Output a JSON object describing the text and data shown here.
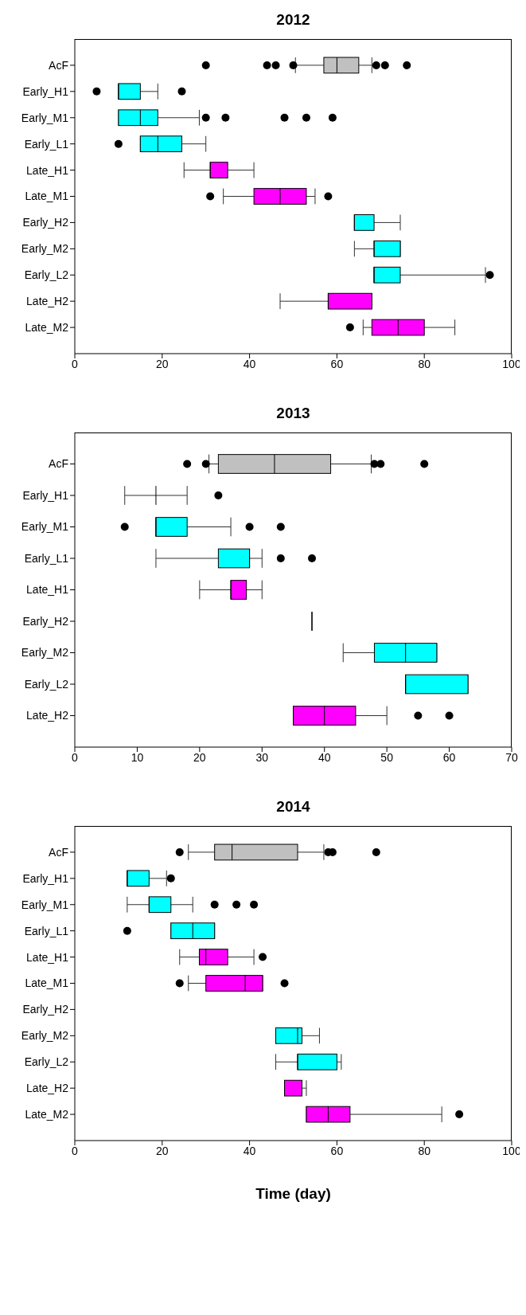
{
  "chart_data": [
    {
      "type": "box",
      "title": "2012",
      "orientation": "horizontal",
      "categories": [
        "AcF",
        "Early_H1",
        "Early_M1",
        "Early_L1",
        "Late_H1",
        "Late_M1",
        "Early_H2",
        "Early_M2",
        "Early_L2",
        "Late_H2",
        "Late_M2"
      ],
      "colors": [
        "#c0c0c0",
        "#00ffff",
        "#00ffff",
        "#00ffff",
        "#ff00ff",
        "#ff00ff",
        "#00ffff",
        "#00ffff",
        "#00ffff",
        "#ff00ff",
        "#ff00ff"
      ],
      "boxes": [
        {
          "low": 50.5,
          "q1": 57,
          "median": 60,
          "q3": 65,
          "high": 68,
          "outliers": [
            30,
            44,
            46,
            50,
            69,
            71,
            76
          ]
        },
        {
          "low": 10,
          "q1": 10,
          "median": 10,
          "q3": 15,
          "high": 19,
          "outliers": [
            5,
            24.5
          ]
        },
        {
          "low": 10,
          "q1": 10,
          "median": 15,
          "q3": 19,
          "high": 28.5,
          "outliers": [
            30,
            34.5,
            48,
            53,
            59
          ]
        },
        {
          "low": 15,
          "q1": 15,
          "median": 19,
          "q3": 24.5,
          "high": 30,
          "outliers": [
            10
          ]
        },
        {
          "low": 25,
          "q1": 31,
          "median": 31,
          "q3": 35,
          "high": 41
        },
        {
          "low": 34,
          "q1": 41,
          "median": 47,
          "q3": 53,
          "high": 55,
          "outliers": [
            31,
            58
          ]
        },
        {
          "low": 64,
          "q1": 64,
          "median": 64,
          "q3": 68.5,
          "high": 74.5
        },
        {
          "low": 64,
          "q1": 68.5,
          "median": 68.5,
          "q3": 74.5,
          "high": 74.5
        },
        {
          "low": 68.5,
          "q1": 68.5,
          "median": 68.5,
          "q3": 74.5,
          "high": 94,
          "outliers": [
            95
          ]
        },
        {
          "low": 47,
          "q1": 58,
          "median": 58,
          "q3": 68,
          "high": 68
        },
        {
          "low": 66,
          "q1": 68,
          "median": 74,
          "q3": 80,
          "high": 87,
          "outliers": [
            63
          ]
        }
      ],
      "xlim": [
        0,
        100
      ],
      "xticks": [
        0,
        20,
        40,
        60,
        80,
        100
      ]
    },
    {
      "type": "box",
      "title": "2013",
      "orientation": "horizontal",
      "categories": [
        "AcF",
        "Early_H1",
        "Early_M1",
        "Early_L1",
        "Late_H1",
        "Early_H2",
        "Early_M2",
        "Early_L2",
        "Late_H2"
      ],
      "colors": [
        "#c0c0c0",
        null,
        "#00ffff",
        "#00ffff",
        "#ff00ff",
        null,
        "#00ffff",
        "#00ffff",
        "#ff00ff"
      ],
      "boxes": [
        {
          "low": 21.5,
          "q1": 23,
          "median": 32,
          "q3": 41,
          "high": 47.5,
          "outliers": [
            18,
            21,
            48,
            49,
            56
          ]
        },
        {
          "low": 8,
          "q1": 13,
          "median": 13,
          "q3": 13,
          "high": 18,
          "outliers": [
            23
          ]
        },
        {
          "low": 13,
          "q1": 13,
          "median": 13,
          "q3": 18,
          "high": 25,
          "outliers": [
            8,
            28,
            33
          ]
        },
        {
          "low": 13,
          "q1": 23,
          "median": 28,
          "q3": 28,
          "high": 30,
          "outliers": [
            33,
            38
          ]
        },
        {
          "low": 20,
          "q1": 25,
          "median": 25,
          "q3": 27.5,
          "high": 30
        },
        {
          "low": 38,
          "q1": 38,
          "median": 38,
          "q3": 38,
          "high": 38
        },
        {
          "low": 43,
          "q1": 48,
          "median": 53,
          "q3": 58,
          "high": 58
        },
        {
          "low": 53,
          "q1": 53,
          "median": 53,
          "q3": 63,
          "high": 63
        },
        {
          "low": 35,
          "q1": 35,
          "median": 40,
          "q3": 45,
          "high": 50,
          "outliers": [
            55,
            60
          ]
        }
      ],
      "xlim": [
        0,
        70
      ],
      "xticks": [
        0,
        10,
        20,
        30,
        40,
        50,
        60,
        70
      ]
    },
    {
      "type": "box",
      "title": "2014",
      "xlabel": "Time (day)",
      "orientation": "horizontal",
      "categories": [
        "AcF",
        "Early_H1",
        "Early_M1",
        "Early_L1",
        "Late_H1",
        "Late_M1",
        "Early_H2",
        "Early_M2",
        "Early_L2",
        "Late_H2",
        "Late_M2"
      ],
      "colors": [
        "#c0c0c0",
        "#00ffff",
        "#00ffff",
        "#00ffff",
        "#ff00ff",
        "#ff00ff",
        null,
        "#00ffff",
        "#00ffff",
        "#ff00ff",
        "#ff00ff"
      ],
      "boxes": [
        {
          "low": 26,
          "q1": 32,
          "median": 36,
          "q3": 51,
          "high": 57,
          "outliers": [
            24,
            58,
            59,
            69
          ]
        },
        {
          "low": 12,
          "q1": 12,
          "median": 12,
          "q3": 17,
          "high": 21,
          "outliers": [
            22
          ]
        },
        {
          "low": 12,
          "q1": 17,
          "median": 17,
          "q3": 22,
          "high": 27,
          "outliers": [
            32,
            37,
            41
          ]
        },
        {
          "low": 22,
          "q1": 22,
          "median": 27,
          "q3": 32,
          "high": 32,
          "outliers": [
            12
          ]
        },
        {
          "low": 24,
          "q1": 28.5,
          "median": 30,
          "q3": 35,
          "high": 41,
          "outliers": [
            43
          ]
        },
        {
          "low": 26,
          "q1": 30,
          "median": 39,
          "q3": 43,
          "high": 43,
          "outliers": [
            24,
            48
          ]
        },
        null,
        {
          "low": 46,
          "q1": 46,
          "median": 51,
          "q3": 52,
          "high": 56
        },
        {
          "low": 46,
          "q1": 51,
          "median": 51,
          "q3": 60,
          "high": 61
        },
        {
          "low": 48,
          "q1": 48,
          "median": 48,
          "q3": 52,
          "high": 53
        },
        {
          "low": 53,
          "q1": 53,
          "median": 58,
          "q3": 63,
          "high": 84,
          "outliers": [
            88
          ]
        }
      ],
      "xlim": [
        0,
        100
      ],
      "xticks": [
        0,
        20,
        40,
        60,
        80,
        100
      ]
    }
  ]
}
